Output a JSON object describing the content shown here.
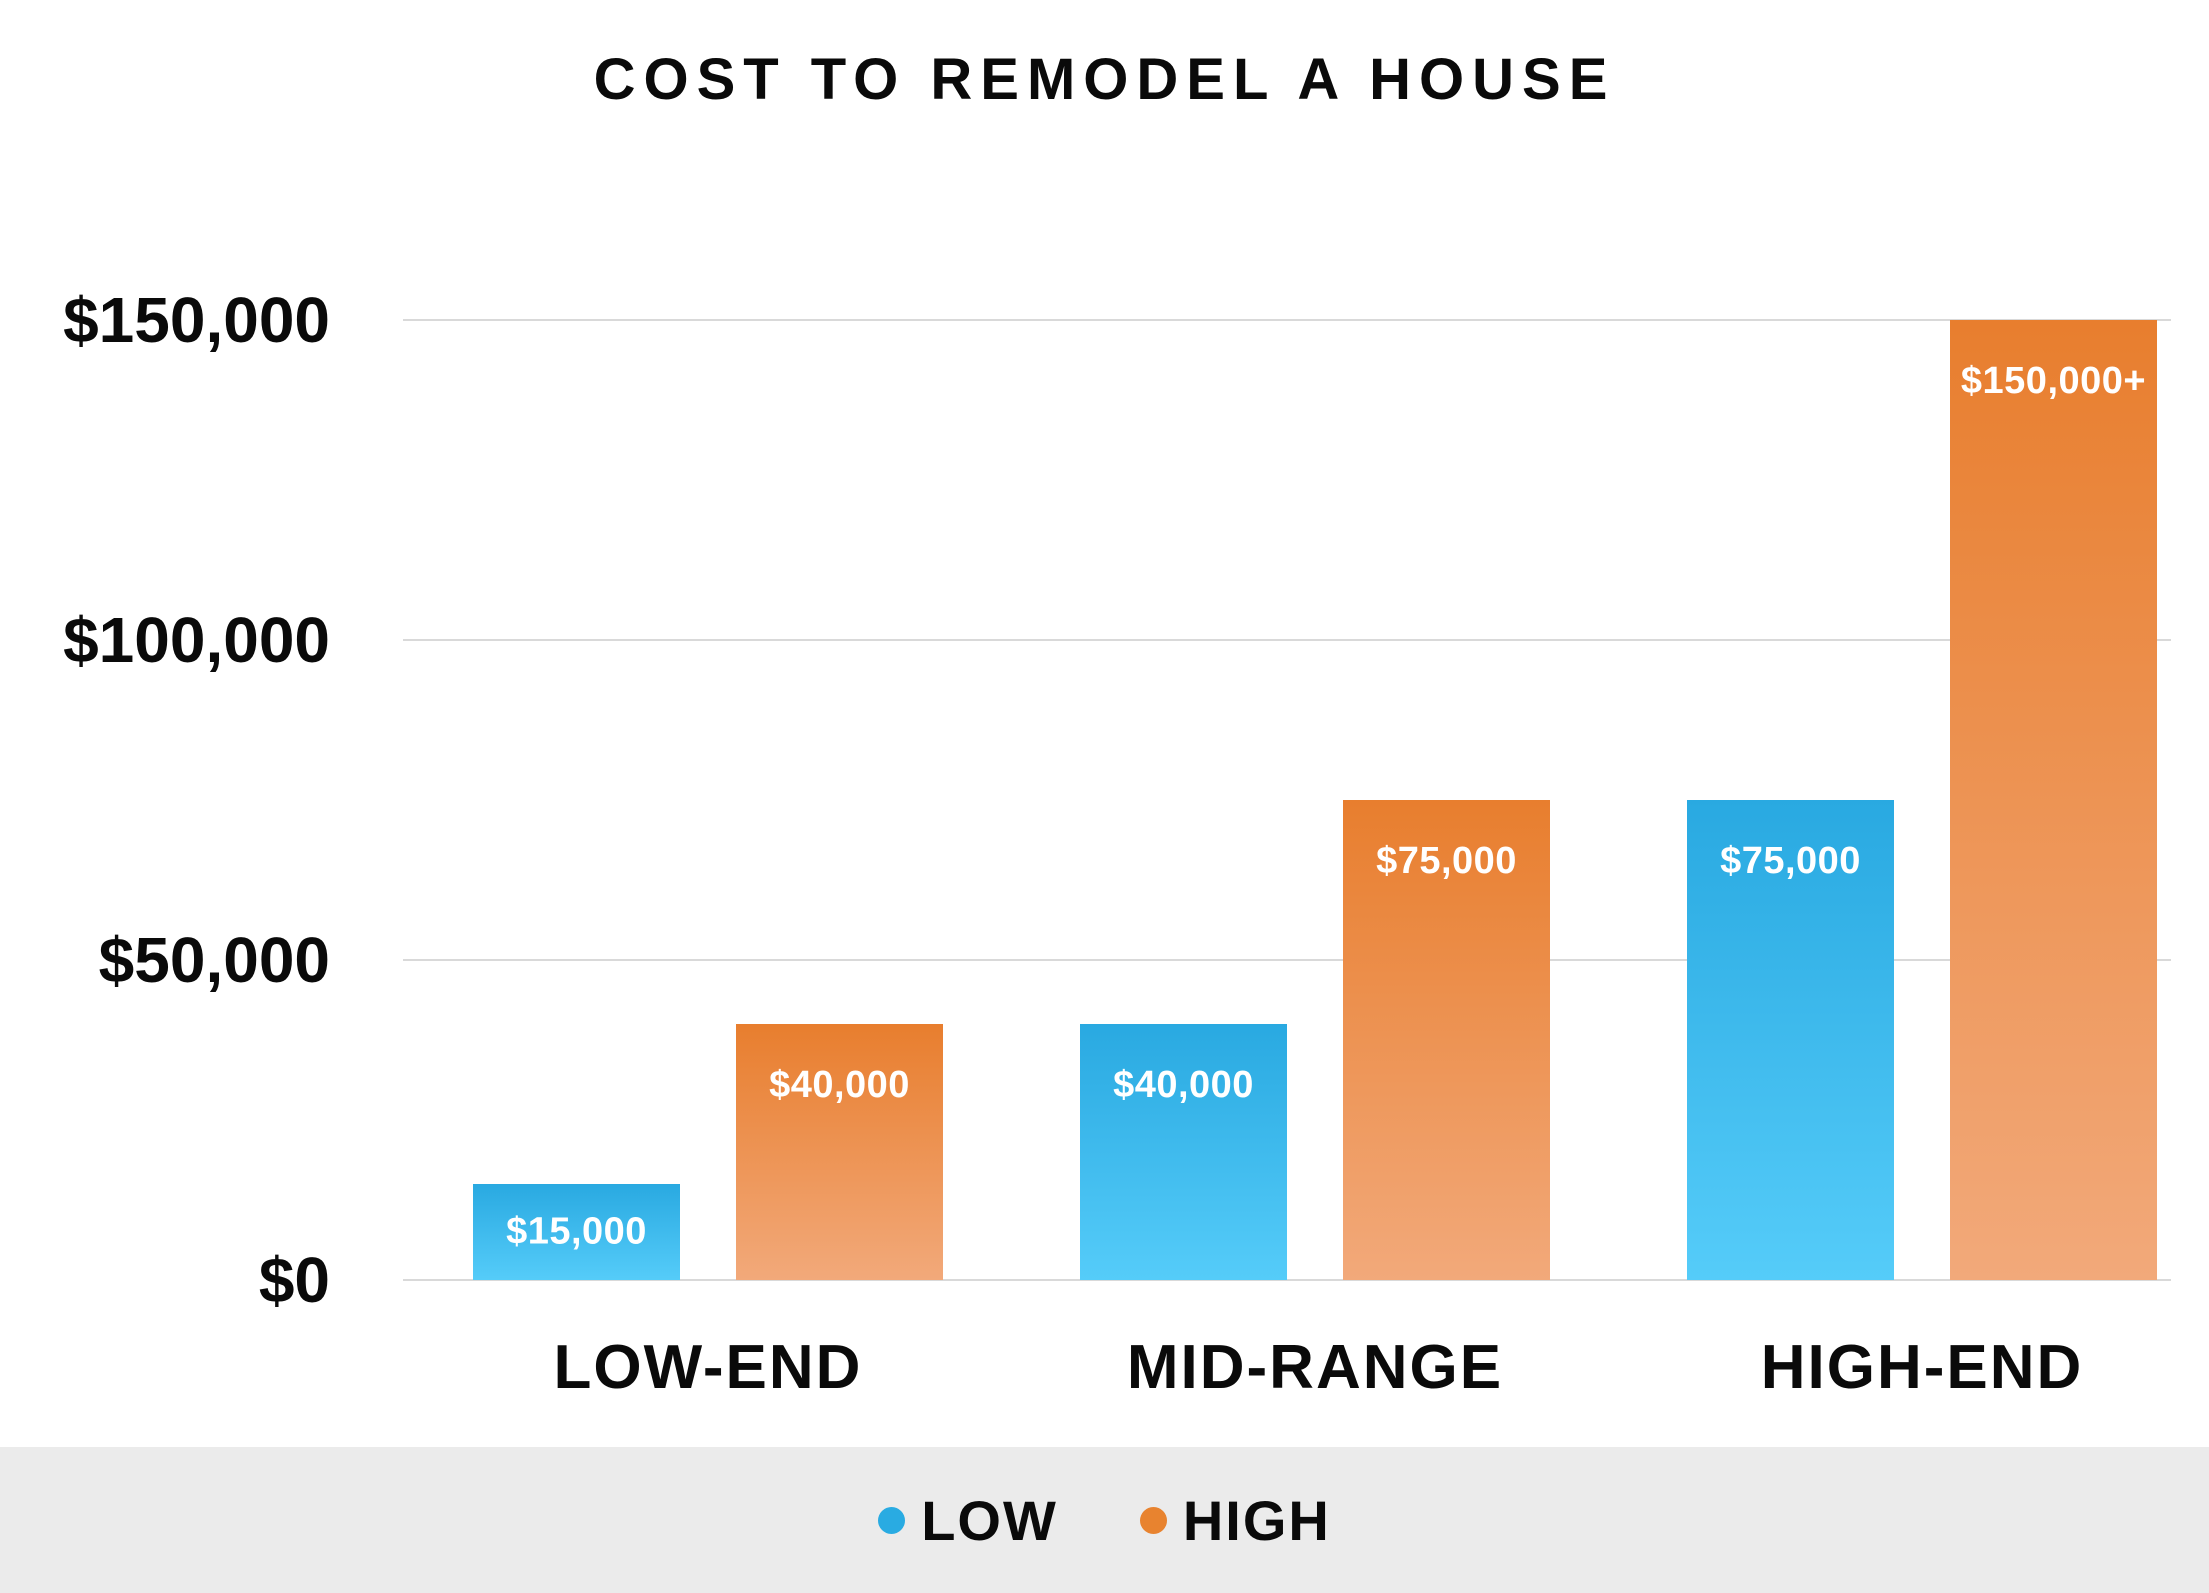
{
  "title": "COST TO REMODEL A HOUSE",
  "colors": {
    "low_gradient_top": "#29A9E1",
    "low_gradient_bottom": "#55CCF9",
    "high_gradient_top": "#E87E2E",
    "high_gradient_bottom": "#F2A97A",
    "low_legend_dot": "#29ABE2",
    "high_legend_dot": "#E8832F",
    "gridline": "#D9D9D9",
    "legend_band": "#EBEBEB",
    "bar_label_text": "#FFFFFF",
    "axis_text": "#0A0A0A"
  },
  "chart_data": {
    "type": "bar",
    "title": "COST TO REMODEL A HOUSE",
    "categories": [
      "LOW-END",
      "MID-RANGE",
      "HIGH-END"
    ],
    "series": [
      {
        "name": "LOW",
        "color": "#29ABE2",
        "gradient": [
          "#29A9E1",
          "#55CCF9"
        ],
        "values": [
          15000,
          40000,
          75000
        ],
        "labels": [
          "$15,000",
          "$40,000",
          "$75,000"
        ]
      },
      {
        "name": "HIGH",
        "color": "#E8832F",
        "gradient": [
          "#E87E2E",
          "#F2A97A"
        ],
        "values": [
          40000,
          75000,
          150000
        ],
        "labels": [
          "$40,000",
          "$75,000",
          "$150,000+"
        ]
      }
    ],
    "xlabel": "",
    "ylabel": "",
    "y_axis": {
      "min": 0,
      "max": 150000,
      "ticks": [
        {
          "label": "$0",
          "value": 0
        },
        {
          "label": "$50,000",
          "value": 50000
        },
        {
          "label": "$100,000",
          "value": 100000
        },
        {
          "label": "$150,000",
          "value": 150000
        }
      ]
    },
    "grid": true,
    "legend_position": "bottom"
  },
  "legend": {
    "items": [
      {
        "label": "LOW",
        "color": "#29ABE2"
      },
      {
        "label": "HIGH",
        "color": "#E8832F"
      }
    ]
  }
}
